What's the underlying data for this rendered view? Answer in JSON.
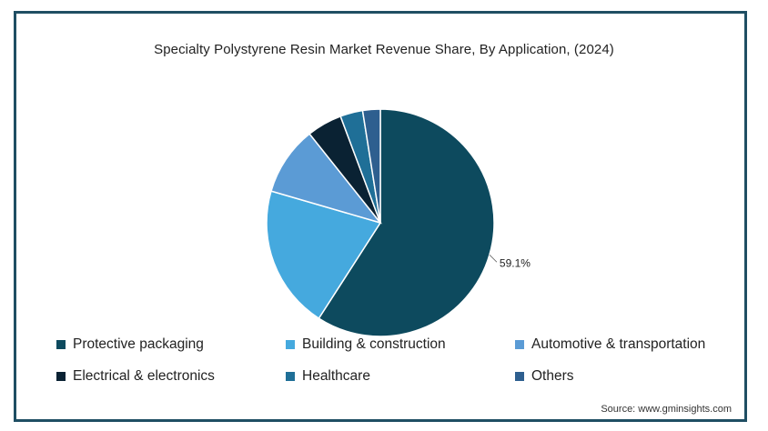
{
  "chart_data": {
    "type": "pie",
    "title": "Specialty Polystyrene Resin Market Revenue Share, By Application, (2024)",
    "slices": [
      {
        "label": "Protective packaging",
        "value": 59.1,
        "color": "#0d4a5e",
        "data_label": "59.1%"
      },
      {
        "label": "Building & construction",
        "value": 20.4,
        "color": "#45a9de"
      },
      {
        "label": "Automotive & transportation",
        "value": 9.8,
        "color": "#5b9bd5"
      },
      {
        "label": "Electrical & electronics",
        "value": 5.0,
        "color": "#0a2233"
      },
      {
        "label": "Healthcare",
        "value": 3.2,
        "color": "#1f6f97"
      },
      {
        "label": "Others",
        "value": 2.5,
        "color": "#2e5f8f"
      }
    ],
    "legend_position": "bottom"
  },
  "source": "Source: www.gminsights.com"
}
